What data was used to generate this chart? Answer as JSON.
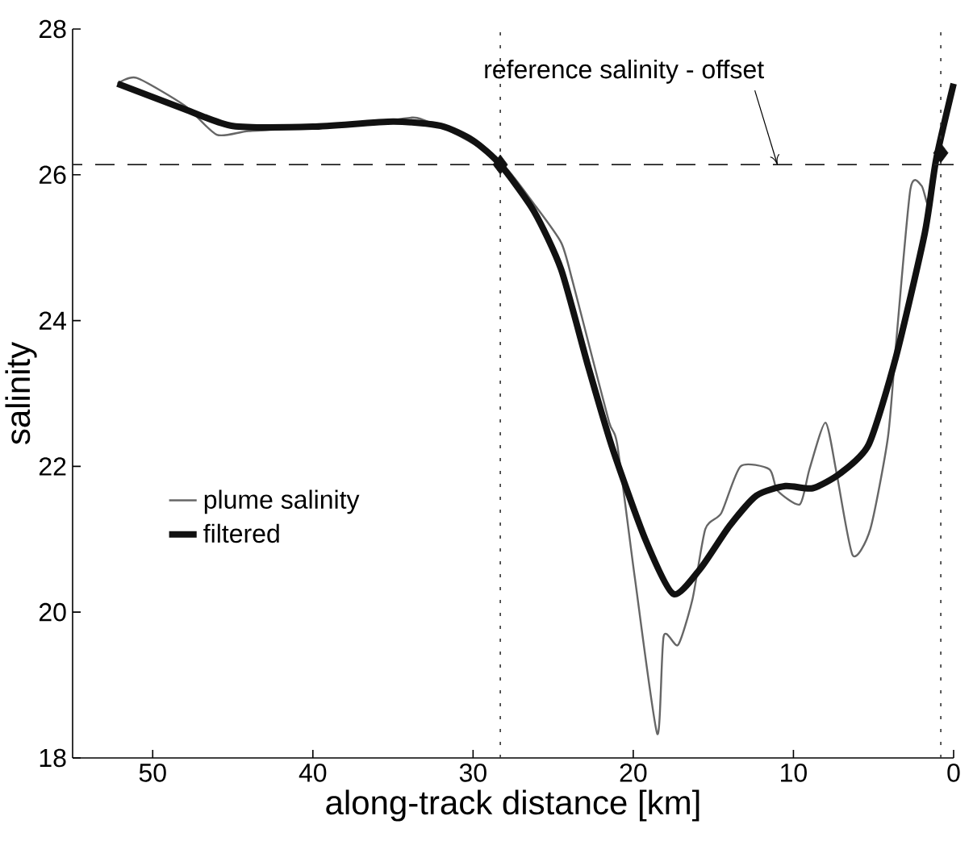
{
  "chart_data": {
    "type": "line",
    "xlabel": "along-track distance [km]",
    "ylabel": "salinity",
    "xlim": [
      55,
      0
    ],
    "ylim": [
      18,
      28
    ],
    "xticks": [
      50,
      40,
      30,
      20,
      10,
      0
    ],
    "yticks": [
      18,
      20,
      22,
      24,
      26,
      28
    ],
    "grid": false,
    "legend": "left",
    "line_style": "solid",
    "marker": "none",
    "series": [
      {
        "name": "plume salinity",
        "color": "#666666",
        "x": [
          52.2,
          51,
          48,
          46,
          44,
          40,
          35,
          33.5,
          31,
          28.3,
          26.2,
          24.5,
          23.8,
          22.8,
          21.5,
          21.0,
          19.9,
          18.5,
          18.1,
          17.2,
          16.3,
          15.5,
          14.5,
          13.3,
          11.5,
          11.0,
          9.6,
          9.0,
          8.0,
          7.3,
          6.3,
          5.2,
          4.1,
          3.6,
          2.7,
          2.0,
          1.6,
          1.2
        ],
        "values": [
          27.25,
          27.33,
          26.95,
          26.55,
          26.6,
          26.65,
          26.75,
          26.78,
          26.55,
          26.18,
          25.6,
          25.07,
          24.55,
          23.7,
          22.6,
          22.3,
          20.47,
          18.33,
          19.67,
          19.55,
          20.18,
          21.14,
          21.36,
          22.0,
          21.96,
          21.67,
          21.48,
          21.96,
          22.6,
          21.9,
          20.78,
          21.14,
          22.4,
          23.67,
          25.8,
          25.85,
          25.6,
          26.0
        ]
      },
      {
        "name": "filtered",
        "color": "#111111",
        "x": [
          52.2,
          48,
          45,
          40,
          35,
          32,
          30,
          28.3,
          26.2,
          24.5,
          22.8,
          21.3,
          19.25,
          17.5,
          15.8,
          14.0,
          12.3,
          10.5,
          8.8,
          7.1,
          5.3,
          3.6,
          1.8,
          1.1,
          0
        ],
        "values": [
          27.25,
          26.9,
          26.67,
          26.66,
          26.73,
          26.67,
          26.47,
          26.14,
          25.5,
          24.7,
          23.36,
          22.25,
          21.0,
          20.25,
          20.6,
          21.18,
          21.6,
          21.73,
          21.7,
          21.9,
          22.3,
          23.5,
          25.2,
          26.2,
          27.25
        ]
      },
      {
        "type": "scatter",
        "marker": "diamond",
        "color": "#111111",
        "x": [
          28.3,
          0.8
        ],
        "values": [
          26.14,
          26.3
        ]
      }
    ],
    "ref_lines": [
      {
        "axis": "x",
        "value": 28.3,
        "line_style": "dotted",
        "color": "#333333"
      },
      {
        "axis": "x",
        "value": 0.8,
        "line_style": "dotted",
        "color": "#333333"
      },
      {
        "axis": "y",
        "value": 26.14,
        "line_style": "dashed",
        "color": "#222222"
      }
    ],
    "annotations": [
      {
        "text": "reference salinity - offset",
        "x": 11,
        "y": 26.14
      }
    ]
  }
}
